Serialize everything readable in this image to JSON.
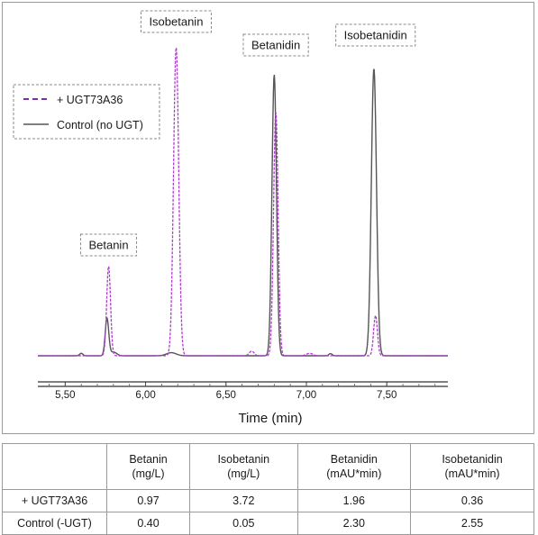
{
  "chart_data": {
    "type": "line",
    "xlabel": "Time (min)",
    "ylabel": "",
    "xlim": [
      5.33,
      7.88
    ],
    "ylim": [
      0,
      100
    ],
    "x_ticks": [
      "5,50",
      "6,00",
      "6,50",
      "7,00",
      "7,50"
    ],
    "x_tick_values": [
      5.5,
      6.0,
      6.5,
      7.0,
      7.5
    ],
    "grid": false,
    "legend_position": "top-left",
    "series": [
      {
        "name": "+ UGT73A36",
        "style": "dashed",
        "color": "#b03ad1",
        "peaks": [
          {
            "x": 5.77,
            "height": 29,
            "width": 0.012
          },
          {
            "x": 6.19,
            "height": 100,
            "width": 0.016
          },
          {
            "x": 6.81,
            "height": 79,
            "width": 0.014
          },
          {
            "x": 7.43,
            "height": 13,
            "width": 0.012
          },
          {
            "x": 6.66,
            "height": 1.5,
            "width": 0.015
          },
          {
            "x": 7.02,
            "height": 0.8,
            "width": 0.02
          }
        ]
      },
      {
        "name": "Control (no UGT)",
        "style": "solid",
        "color": "#555555",
        "peaks": [
          {
            "x": 5.76,
            "height": 12,
            "width": 0.011
          },
          {
            "x": 6.8,
            "height": 91,
            "width": 0.014
          },
          {
            "x": 7.42,
            "height": 93,
            "width": 0.016
          },
          {
            "x": 5.6,
            "height": 0.8,
            "width": 0.01
          },
          {
            "x": 5.8,
            "height": 1.2,
            "width": 0.02
          },
          {
            "x": 6.16,
            "height": 1.0,
            "width": 0.03
          },
          {
            "x": 7.15,
            "height": 0.7,
            "width": 0.01
          }
        ]
      }
    ],
    "annotations": [
      {
        "text": "Isobetanin",
        "x": 6.19
      },
      {
        "text": "Betanidin",
        "x": 6.81
      },
      {
        "text": "Isobetanidin",
        "x": 7.43
      },
      {
        "text": "Betanin",
        "x": 5.77
      }
    ]
  },
  "table": {
    "columns": [
      {
        "line1": "",
        "line2": ""
      },
      {
        "line1": "Betanin",
        "line2": "(mg/L)"
      },
      {
        "line1": "Isobetanin",
        "line2": "(mg/L)"
      },
      {
        "line1": "Betanidin",
        "line2": "(mAU*min)"
      },
      {
        "line1": "Isobetanidin",
        "line2": "(mAU*min)"
      }
    ],
    "rows": [
      {
        "label": "+ UGT73A36",
        "values": [
          "0.97",
          "3.72",
          "1.96",
          "0.36"
        ]
      },
      {
        "label": "Control (-UGT)",
        "values": [
          "0.40",
          "0.05",
          "2.30",
          "2.55"
        ]
      }
    ]
  }
}
